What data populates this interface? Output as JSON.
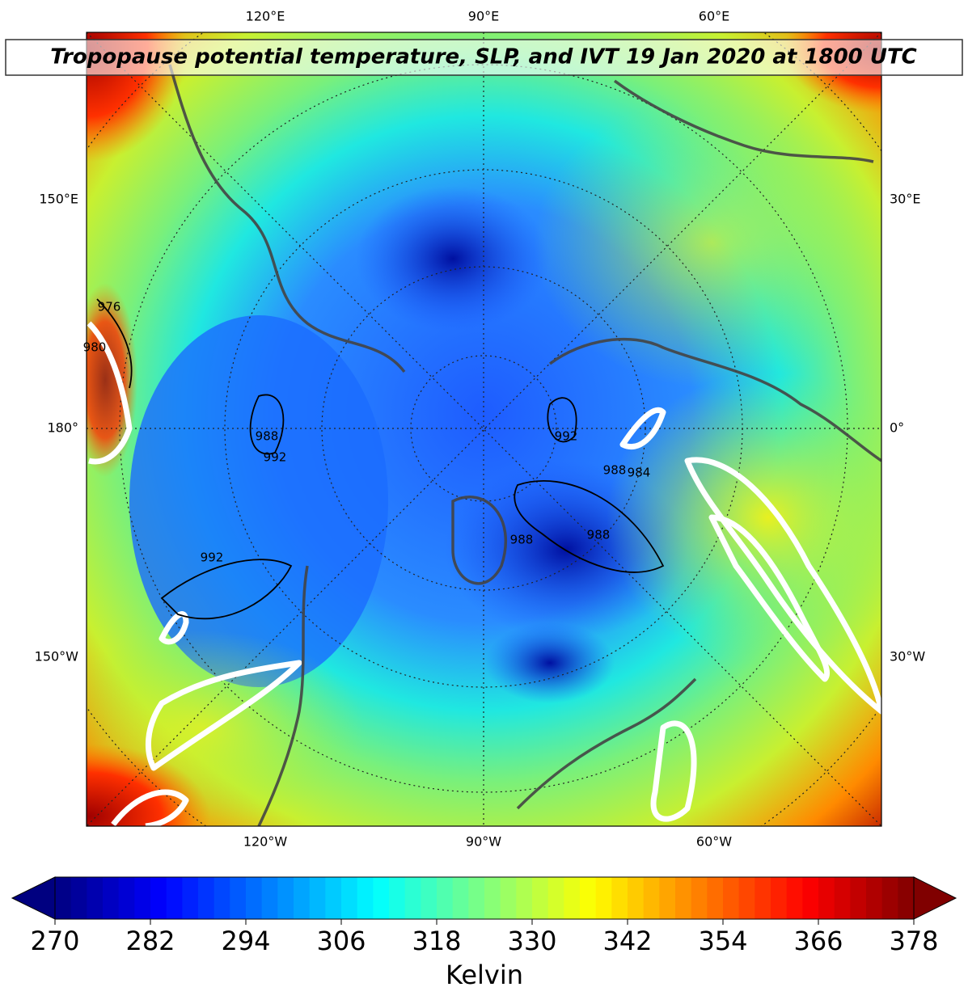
{
  "title": "Tropopause potential temperature, SLP, and IVT 19 Jan 2020 at 1800 UTC",
  "map": {
    "labels_top": [
      "120°E",
      "90°E",
      "60°E"
    ],
    "labels_bottom": [
      "120°W",
      "90°W",
      "60°W"
    ],
    "labels_left": [
      "150°E",
      "180°",
      "150°W"
    ],
    "labels_right": [
      "30°E",
      "0°",
      "30°W"
    ],
    "contour_labels": [
      "976",
      "980",
      "988",
      "988",
      "992",
      "992",
      "992",
      "988",
      "988",
      "984"
    ]
  },
  "colorbar": {
    "label": "Kelvin",
    "range": [
      270,
      378
    ],
    "ticks": [
      270,
      282,
      294,
      306,
      318,
      330,
      342,
      354,
      366,
      378
    ],
    "colormap": "jet",
    "extend": "both"
  }
}
